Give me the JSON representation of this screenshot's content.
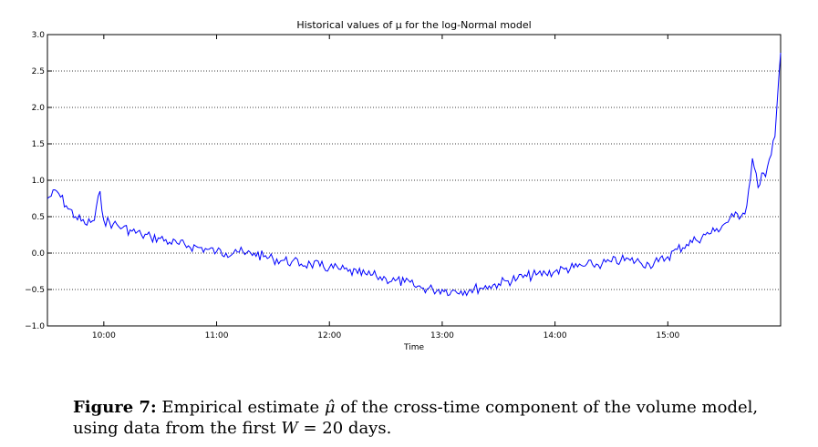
{
  "chart_data": {
    "type": "line",
    "title": "Historical values of μ for the log-Normal model",
    "xlabel": "Time",
    "ylabel": "",
    "xlim": [
      "09:30",
      "16:00"
    ],
    "ylim": [
      -1.0,
      3.0
    ],
    "yticks": [
      "−1.0",
      "−0.5",
      "0.0",
      "0.5",
      "1.0",
      "1.5",
      "2.0",
      "2.5",
      "3.0"
    ],
    "xticks": [
      "10:00",
      "11:00",
      "12:00",
      "13:00",
      "14:00",
      "15:00"
    ],
    "grid": "dotted horizontal",
    "line_color": "#0000ff",
    "series": [
      {
        "x": [
          "09:30",
          "09:35",
          "09:40",
          "09:45",
          "09:50",
          "09:55",
          "09:58",
          "10:00",
          "10:05",
          "10:10",
          "10:15",
          "10:20",
          "10:25",
          "10:30",
          "10:35",
          "10:40",
          "10:45",
          "10:50",
          "10:55",
          "11:00",
          "11:05",
          "11:10",
          "11:15",
          "11:20",
          "11:25",
          "11:30",
          "11:35",
          "11:40",
          "11:45",
          "11:50",
          "11:55",
          "12:00",
          "12:05",
          "12:10",
          "12:15",
          "12:20",
          "12:25",
          "12:30",
          "12:35",
          "12:40",
          "12:45",
          "12:50",
          "12:55",
          "13:00",
          "13:05",
          "13:10",
          "13:15",
          "13:20",
          "13:25",
          "13:30",
          "13:35",
          "13:40",
          "13:45",
          "13:50",
          "13:55",
          "14:00",
          "14:05",
          "14:10",
          "14:15",
          "14:20",
          "14:25",
          "14:30",
          "14:35",
          "14:40",
          "14:45",
          "14:50",
          "14:55",
          "15:00",
          "15:05",
          "15:10",
          "15:15",
          "15:20",
          "15:25",
          "15:30",
          "15:35",
          "15:40",
          "15:42",
          "15:45",
          "15:48",
          "15:50",
          "15:52",
          "15:55",
          "15:57",
          "16:00"
        ],
        "values": [
          0.75,
          0.85,
          0.65,
          0.5,
          0.4,
          0.45,
          0.85,
          0.45,
          0.4,
          0.35,
          0.3,
          0.25,
          0.22,
          0.2,
          0.15,
          0.12,
          0.1,
          0.08,
          0.05,
          0.02,
          0.0,
          0.05,
          -0.02,
          0.0,
          -0.05,
          -0.08,
          -0.1,
          -0.12,
          -0.15,
          -0.15,
          -0.18,
          -0.2,
          -0.22,
          -0.25,
          -0.28,
          -0.3,
          -0.32,
          -0.35,
          -0.38,
          -0.4,
          -0.45,
          -0.48,
          -0.5,
          -0.5,
          -0.52,
          -0.52,
          -0.5,
          -0.48,
          -0.45,
          -0.42,
          -0.38,
          -0.35,
          -0.32,
          -0.3,
          -0.28,
          -0.25,
          -0.22,
          -0.2,
          -0.18,
          -0.16,
          -0.15,
          -0.12,
          -0.1,
          -0.1,
          -0.12,
          -0.15,
          -0.12,
          -0.05,
          0.05,
          0.12,
          0.18,
          0.25,
          0.3,
          0.4,
          0.5,
          0.55,
          0.65,
          1.3,
          0.9,
          1.1,
          1.05,
          1.35,
          1.6,
          2.75
        ]
      }
    ]
  },
  "caption": {
    "label": "Figure 7:",
    "text_a": " Empirical estimate ",
    "symbol": "μ̂",
    "text_b": " of the cross-time component of the volume model, using data from the first ",
    "var": "W",
    "text_c": " = 20 days."
  }
}
